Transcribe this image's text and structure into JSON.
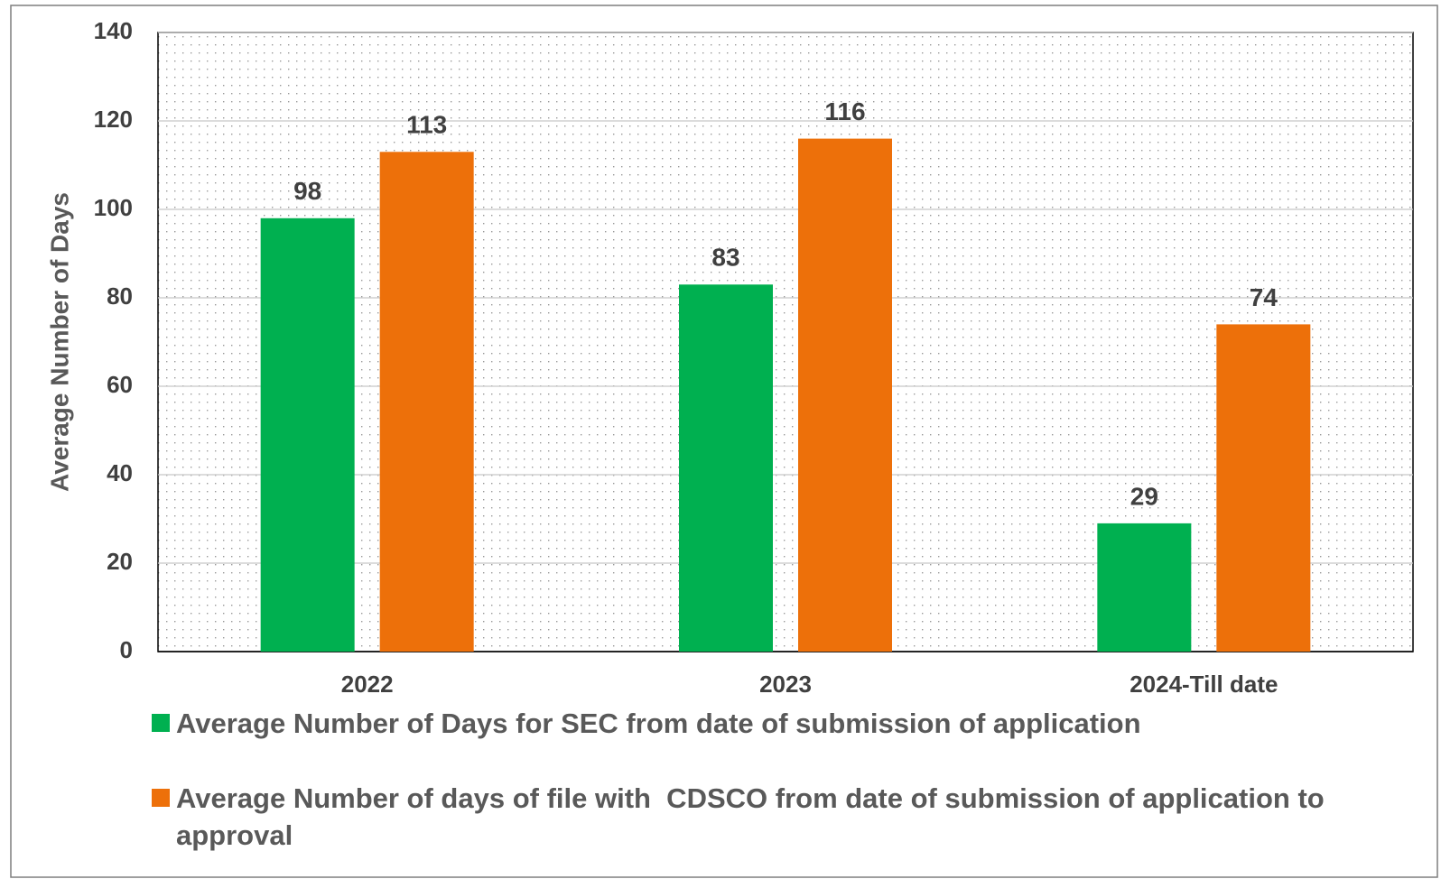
{
  "chart_data": {
    "type": "bar",
    "ylabel": "Average Number of Days",
    "categories": [
      "2022",
      "2023",
      "2024-Till date"
    ],
    "series": [
      {
        "name": "Average Number of Days for SEC from date of submission of application",
        "color": "#00b050",
        "values": [
          98,
          83,
          29
        ]
      },
      {
        "name": "Average Number of days of file with  CDSCO from date of submission of application to approval",
        "color": "#ed700a",
        "values": [
          113,
          116,
          74
        ]
      }
    ],
    "ylim": [
      0,
      140
    ],
    "yticks": [
      0,
      20,
      40,
      60,
      80,
      100,
      120,
      140
    ],
    "grid": true,
    "legend": "bottom"
  }
}
